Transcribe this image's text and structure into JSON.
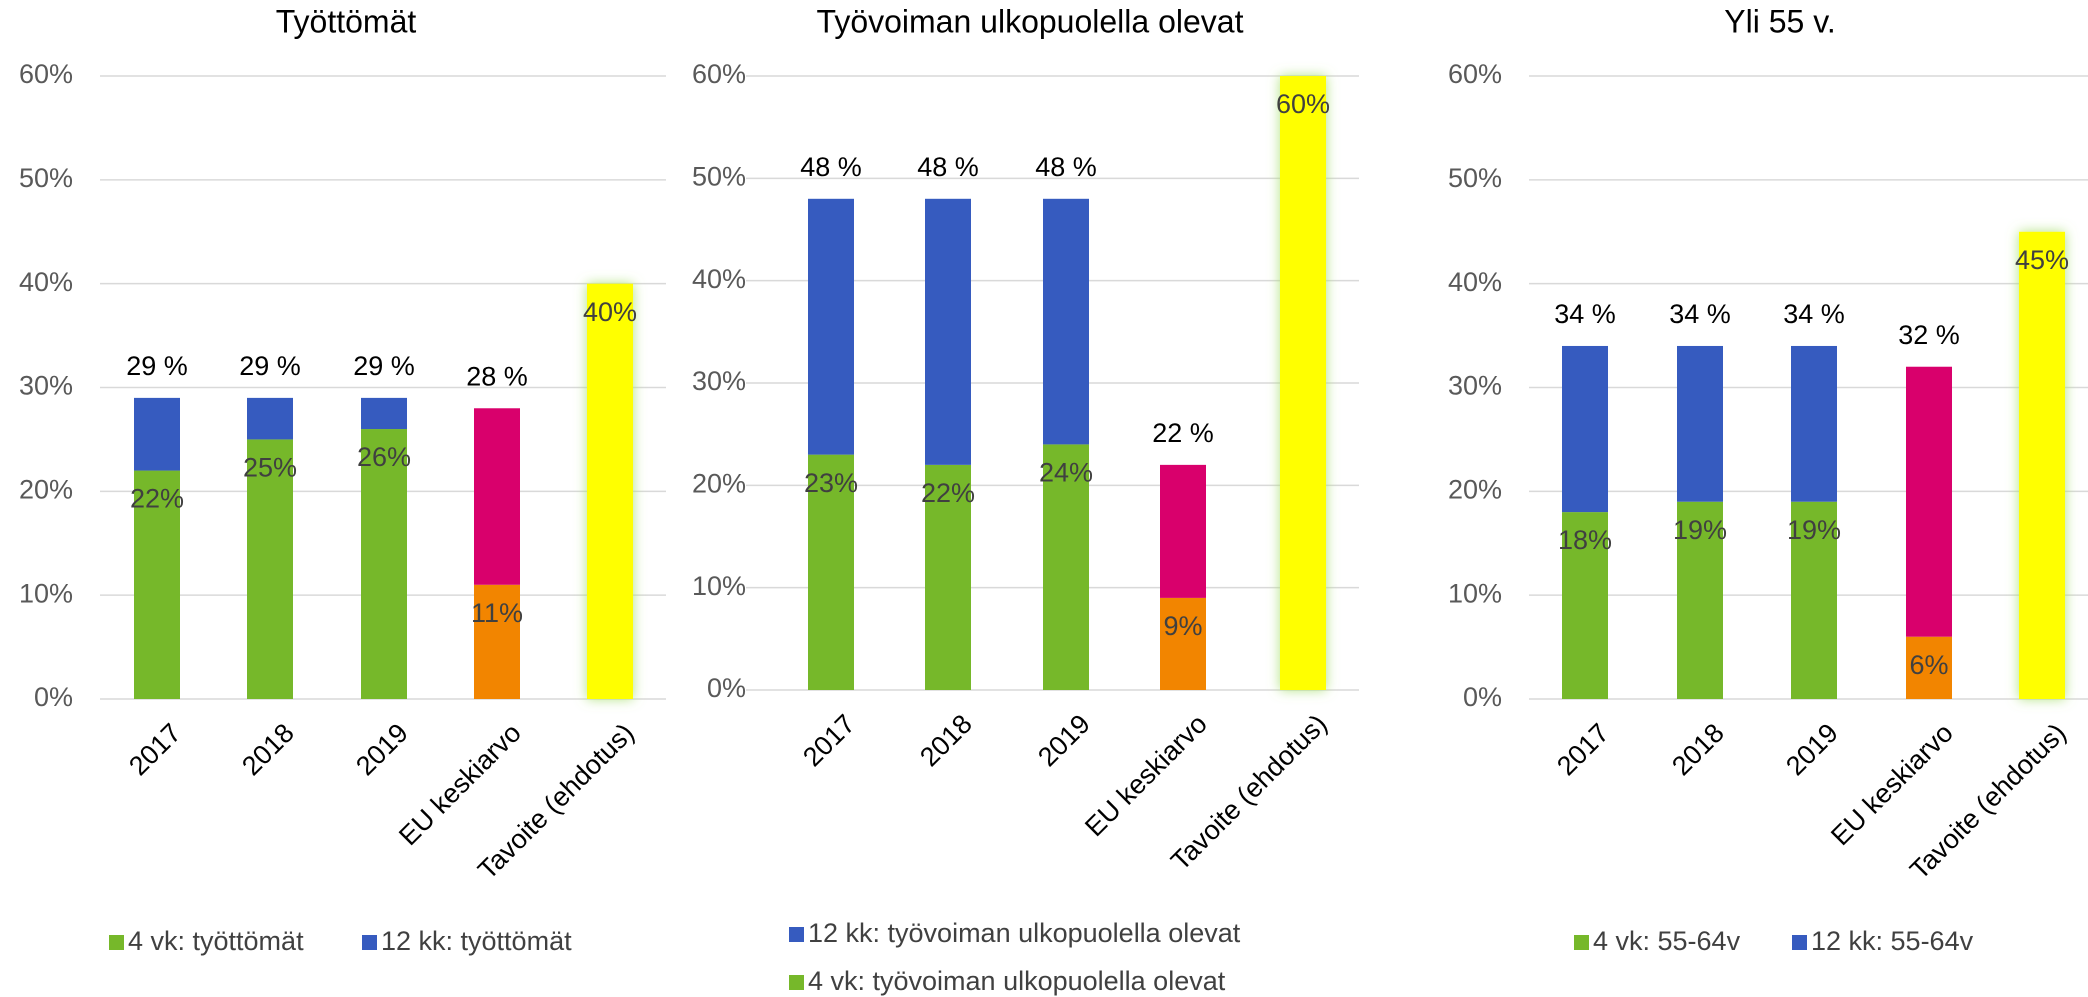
{
  "chart_data": [
    {
      "type": "stacked_bar",
      "title": "Työttömät",
      "categories": [
        "2017",
        "2018",
        "2019",
        "EU keskiarvo",
        "Tavoite (ehdotus)"
      ],
      "series": [
        {
          "name": "4 vk: työttömät",
          "color": "#76b82a",
          "colors": [
            "#76b82a",
            "#76b82a",
            "#76b82a",
            "#f28500",
            "#ffff00"
          ],
          "values": [
            22,
            25,
            26,
            11,
            40
          ],
          "value_labels": [
            "22%",
            "25%",
            "26%",
            "11%",
            "40%"
          ]
        },
        {
          "name": "12 kk: työttömät",
          "color": "#365bbf",
          "colors": [
            "#365bbf",
            "#365bbf",
            "#365bbf",
            "#d9006c",
            "#365bbf"
          ],
          "values": [
            7,
            4,
            3,
            17,
            null
          ]
        }
      ],
      "totals": [
        29,
        29,
        29,
        28,
        null
      ],
      "total_labels": [
        "29 %",
        "29 %",
        "29 %",
        "28 %",
        null
      ],
      "ylim": [
        0,
        60
      ],
      "yticks": [
        {
          "value": 0,
          "label": "0%"
        },
        {
          "value": 10,
          "label": "10%"
        },
        {
          "value": 20,
          "label": "20%"
        },
        {
          "value": 30,
          "label": "30%"
        },
        {
          "value": 40,
          "label": "40%"
        },
        {
          "value": 50,
          "label": "50%"
        },
        {
          "value": 60,
          "label": "60%"
        }
      ],
      "grid": true,
      "legend": "bottom-row"
    },
    {
      "type": "stacked_bar",
      "title": "Työvoiman ulkopuolella olevat",
      "categories": [
        "2017",
        "2018",
        "2019",
        "EU keskiarvo",
        "Tavoite (ehdotus)"
      ],
      "series": [
        {
          "name": "4 vk: työvoiman ulkopuolella olevat",
          "color": "#76b82a",
          "colors": [
            "#76b82a",
            "#76b82a",
            "#76b82a",
            "#f28500",
            "#ffff00"
          ],
          "values": [
            23,
            22,
            24,
            9,
            60
          ],
          "value_labels": [
            "23%",
            "22%",
            "24%",
            "9%",
            "60%"
          ]
        },
        {
          "name": "12 kk: työvoiman ulkopuolella olevat",
          "color": "#365bbf",
          "colors": [
            "#365bbf",
            "#365bbf",
            "#365bbf",
            "#d9006c",
            "#365bbf"
          ],
          "values": [
            25,
            26,
            24,
            13,
            null
          ]
        }
      ],
      "totals": [
        48,
        48,
        48,
        22,
        null
      ],
      "total_labels": [
        "48 %",
        "48 %",
        "48 %",
        "22 %",
        null
      ],
      "ylim": [
        0,
        60
      ],
      "yticks": [
        {
          "value": 0,
          "label": "0%"
        },
        {
          "value": 10,
          "label": "10%"
        },
        {
          "value": 20,
          "label": "20%"
        },
        {
          "value": 30,
          "label": "30%"
        },
        {
          "value": 40,
          "label": "40%"
        },
        {
          "value": 50,
          "label": "50%"
        },
        {
          "value": 60,
          "label": "60%"
        }
      ],
      "grid": true,
      "legend": "bottom-column-reversed"
    },
    {
      "type": "stacked_bar",
      "title": "Yli 55 v.",
      "categories": [
        "2017",
        "2018",
        "2019",
        "EU keskiarvo",
        "Tavoite (ehdotus)"
      ],
      "series": [
        {
          "name": "4 vk: 55-64v",
          "color": "#76b82a",
          "colors": [
            "#76b82a",
            "#76b82a",
            "#76b82a",
            "#f28500",
            "#ffff00"
          ],
          "values": [
            18,
            19,
            19,
            6,
            45
          ],
          "value_labels": [
            "18%",
            "19%",
            "19%",
            "6%",
            "45%"
          ]
        },
        {
          "name": "12 kk: 55-64v",
          "color": "#365bbf",
          "colors": [
            "#365bbf",
            "#365bbf",
            "#365bbf",
            "#d9006c",
            "#365bbf"
          ],
          "values": [
            16,
            15,
            15,
            26,
            null
          ]
        }
      ],
      "totals": [
        34,
        34,
        34,
        32,
        null
      ],
      "total_labels": [
        "34 %",
        "34 %",
        "34 %",
        "32 %",
        null
      ],
      "ylim": [
        0,
        60
      ],
      "yticks": [
        {
          "value": 0,
          "label": "0%"
        },
        {
          "value": 10,
          "label": "10%"
        },
        {
          "value": 20,
          "label": "20%"
        },
        {
          "value": 30,
          "label": "30%"
        },
        {
          "value": 40,
          "label": "40%"
        },
        {
          "value": 50,
          "label": "50%"
        },
        {
          "value": 60,
          "label": "60%"
        }
      ],
      "grid": true,
      "legend": "bottom-row"
    }
  ]
}
